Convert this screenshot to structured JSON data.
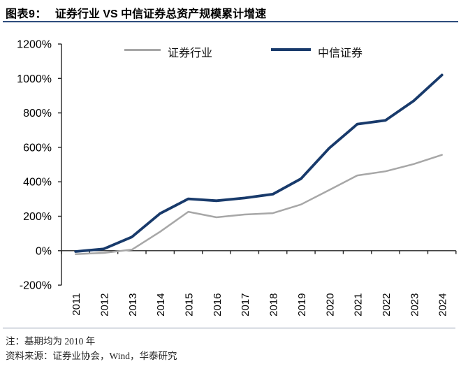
{
  "header": {
    "figure_label": "图表9：",
    "title": "证券行业 VS 中信证券总资产规模累计增速"
  },
  "chart_data": {
    "type": "line",
    "title": "证券行业 VS 中信证券总资产规模累计增速",
    "categories": [
      "2011",
      "2012",
      "2013",
      "2014",
      "2015",
      "2016",
      "2017",
      "2018",
      "2019",
      "2020",
      "2021",
      "2022",
      "2023",
      "2024"
    ],
    "y_tick_labels": [
      "1200%",
      "1000%",
      "800%",
      "600%",
      "400%",
      "200%",
      "0%",
      "-200%"
    ],
    "ylim": [
      -200,
      1200
    ],
    "unit": "%",
    "grid": false,
    "legend_position": "top-center",
    "axis_color": "#262626",
    "series": [
      {
        "name": "证券行业",
        "color": "#a7a7a7",
        "values": [
          -20,
          -13,
          6,
          110,
          226,
          194,
          210,
          218,
          268,
          352,
          437,
          461,
          503,
          556
        ]
      },
      {
        "name": "中信证券",
        "color": "#183a6b",
        "values": [
          -5,
          10,
          80,
          216,
          301,
          290,
          306,
          328,
          418,
          595,
          735,
          757,
          870,
          1020
        ]
      }
    ]
  },
  "footer": {
    "note": "注：基期均为 2010 年",
    "source": "资料来源：证券业协会，Wind，华泰研究"
  }
}
